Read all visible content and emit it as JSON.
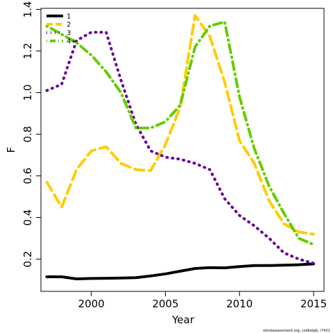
{
  "chart_data": {
    "type": "line",
    "xlabel": "Year",
    "ylabel": "F",
    "xlim": [
      1996.6,
      2015.7
    ],
    "ylim": [
      0.045,
      1.405
    ],
    "xticks": [
      2000,
      2005,
      2010,
      2015
    ],
    "yticks": [
      0.2,
      0.4,
      0.6,
      0.8,
      1.0,
      1.2,
      1.4
    ],
    "ytick_labels": [
      "0.2",
      "0.4",
      "0.6",
      "0.8",
      "1.0",
      "1.2",
      "1.4"
    ],
    "legend_position": "top-left",
    "x": [
      1997,
      1998,
      1999,
      2000,
      2001,
      2002,
      2003,
      2004,
      2005,
      2006,
      2007,
      2008,
      2009,
      2010,
      2011,
      2012,
      2013,
      2014,
      2015
    ],
    "series": [
      {
        "name": "1",
        "color": "#000000",
        "dash": "solid",
        "values": [
          0.115,
          0.115,
          0.105,
          0.107,
          0.108,
          0.109,
          0.111,
          0.119,
          0.129,
          0.142,
          0.155,
          0.159,
          0.158,
          0.164,
          0.169,
          0.169,
          0.171,
          0.173,
          0.177
        ]
      },
      {
        "name": "2",
        "color": "#FFCC00",
        "dash": "dashed",
        "values": [
          0.57,
          0.45,
          0.63,
          0.72,
          0.74,
          0.66,
          0.63,
          0.625,
          0.75,
          0.93,
          1.37,
          1.27,
          1.05,
          0.77,
          0.66,
          0.48,
          0.37,
          0.33,
          0.32
        ]
      },
      {
        "name": "3",
        "color": "#660099",
        "dash": "dotted",
        "values": [
          1.01,
          1.04,
          1.25,
          1.29,
          1.29,
          1.06,
          0.85,
          0.72,
          0.69,
          0.68,
          0.66,
          0.63,
          0.49,
          0.41,
          0.36,
          0.3,
          0.23,
          0.2,
          0.18
        ]
      },
      {
        "name": "4+",
        "color": "#66CC00",
        "dash": "dotdash",
        "values": [
          1.32,
          1.28,
          1.24,
          1.18,
          1.1,
          1.0,
          0.83,
          0.83,
          0.86,
          0.94,
          1.22,
          1.32,
          1.34,
          0.98,
          0.73,
          0.55,
          0.42,
          0.3,
          0.27
        ]
      }
    ]
  },
  "credit": "stockassessment.org, codkatpb, r7421"
}
